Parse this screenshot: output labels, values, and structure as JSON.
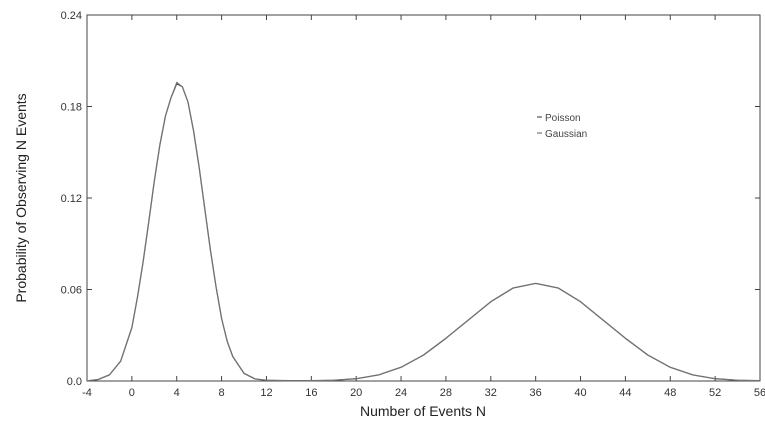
{
  "chart_data": {
    "type": "line",
    "title": "",
    "xlabel": "Number of Events N",
    "ylabel": "Probability of Observing N Events",
    "xlim": [
      -4,
      56
    ],
    "ylim": [
      0,
      0.24
    ],
    "x_ticks": [
      -4,
      0,
      4,
      8,
      12,
      16,
      20,
      24,
      28,
      32,
      36,
      40,
      44,
      48,
      52,
      56
    ],
    "x_tick_labels": [
      "-4",
      "0",
      "4",
      "8",
      "12",
      "16",
      "20",
      "24",
      "28",
      "32",
      "36",
      "40",
      "44",
      "48",
      "52",
      "56"
    ],
    "y_ticks": [
      0,
      0.06,
      0.12,
      0.18,
      0.24
    ],
    "y_tick_labels": [
      "0.0",
      "0.06",
      "0.12",
      "0.18",
      "0.24"
    ],
    "grid": false,
    "legend_position": "top-right",
    "series": [
      {
        "name": "Poisson",
        "color": "#555555",
        "x": [
          -4,
          -3,
          -2,
          -1,
          0,
          0.5,
          1,
          1.5,
          2,
          2.5,
          3,
          3.5,
          4,
          4.5,
          5,
          5.5,
          6,
          6.5,
          7,
          7.5,
          8,
          8.5,
          9,
          10,
          11,
          12,
          14,
          16,
          18,
          20,
          22,
          24,
          26,
          28,
          30,
          32,
          34,
          36,
          38,
          40,
          42,
          44,
          46,
          48,
          50,
          52,
          54,
          56
        ],
        "y": [
          0.0001,
          0.001,
          0.004,
          0.013,
          0.035,
          0.055,
          0.078,
          0.104,
          0.131,
          0.155,
          0.174,
          0.186,
          0.195,
          0.193,
          0.183,
          0.164,
          0.14,
          0.113,
          0.086,
          0.062,
          0.041,
          0.026,
          0.016,
          0.005,
          0.0013,
          0.0005,
          0.0002,
          0.0002,
          0.0005,
          0.0015,
          0.004,
          0.009,
          0.017,
          0.028,
          0.04,
          0.052,
          0.061,
          0.064,
          0.061,
          0.052,
          0.04,
          0.028,
          0.017,
          0.009,
          0.004,
          0.0015,
          0.0005,
          0.0002
        ]
      },
      {
        "name": "Gaussian",
        "color": "#777777",
        "x": [
          -4,
          -3,
          -2,
          -1,
          0,
          0.5,
          1,
          1.5,
          2,
          2.5,
          3,
          3.5,
          4,
          4.5,
          5,
          5.5,
          6,
          6.5,
          7,
          7.5,
          8,
          8.5,
          9,
          10,
          11,
          12,
          14,
          16,
          18,
          20,
          22,
          24,
          26,
          28,
          30,
          32,
          34,
          36,
          38,
          40,
          42,
          44,
          46,
          48,
          50,
          52,
          54,
          56
        ],
        "y": [
          0.0001,
          0.001,
          0.004,
          0.013,
          0.035,
          0.055,
          0.078,
          0.104,
          0.131,
          0.155,
          0.174,
          0.186,
          0.196,
          0.193,
          0.183,
          0.164,
          0.14,
          0.113,
          0.086,
          0.062,
          0.041,
          0.026,
          0.016,
          0.005,
          0.0013,
          0.0005,
          0.0002,
          0.0002,
          0.0005,
          0.0015,
          0.004,
          0.009,
          0.017,
          0.028,
          0.04,
          0.052,
          0.061,
          0.064,
          0.061,
          0.052,
          0.04,
          0.028,
          0.017,
          0.009,
          0.004,
          0.0015,
          0.0005,
          0.0002
        ]
      }
    ]
  }
}
